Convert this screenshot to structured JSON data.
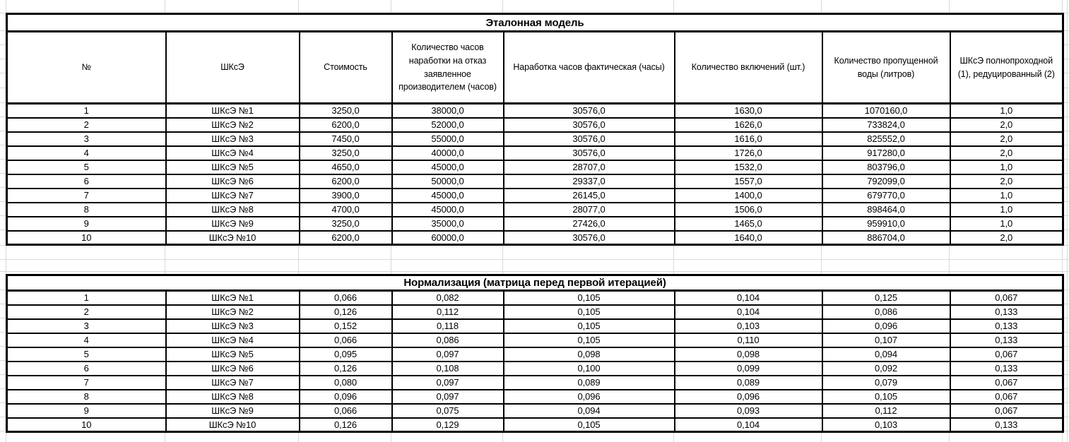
{
  "table1": {
    "title": "Эталонная модель",
    "headers": [
      "№",
      "ШКсЭ",
      "Стоимость",
      "Количество часов наработки на отказ заявленное производителем (часов)",
      "Наработка часов фактическая (часы)",
      "Количество включений (шт.)",
      "Количество пропущенной воды (литров)",
      "ШКсЭ полнопроходной (1), редуцированный (2)"
    ],
    "rows": [
      [
        "1",
        "ШКсЭ №1",
        "3250,0",
        "38000,0",
        "30576,0",
        "1630,0",
        "1070160,0",
        "1,0"
      ],
      [
        "2",
        "ШКсЭ №2",
        "6200,0",
        "52000,0",
        "30576,0",
        "1626,0",
        "733824,0",
        "2,0"
      ],
      [
        "3",
        "ШКсЭ №3",
        "7450,0",
        "55000,0",
        "30576,0",
        "1616,0",
        "825552,0",
        "2,0"
      ],
      [
        "4",
        "ШКсЭ №4",
        "3250,0",
        "40000,0",
        "30576,0",
        "1726,0",
        "917280,0",
        "2,0"
      ],
      [
        "5",
        "ШКсЭ №5",
        "4650,0",
        "45000,0",
        "28707,0",
        "1532,0",
        "803796,0",
        "1,0"
      ],
      [
        "6",
        "ШКсЭ №6",
        "6200,0",
        "50000,0",
        "29337,0",
        "1557,0",
        "792099,0",
        "2,0"
      ],
      [
        "7",
        "ШКсЭ №7",
        "3900,0",
        "45000,0",
        "26145,0",
        "1400,0",
        "679770,0",
        "1,0"
      ],
      [
        "8",
        "ШКсЭ №8",
        "4700,0",
        "45000,0",
        "28077,0",
        "1506,0",
        "898464,0",
        "1,0"
      ],
      [
        "9",
        "ШКсЭ №9",
        "3250,0",
        "35000,0",
        "27426,0",
        "1465,0",
        "959910,0",
        "1,0"
      ],
      [
        "10",
        "ШКсЭ №10",
        "6200,0",
        "60000,0",
        "30576,0",
        "1640,0",
        "886704,0",
        "2,0"
      ]
    ]
  },
  "table2": {
    "title": "Нормализация (матрица перед первой итерацией)",
    "rows": [
      [
        "1",
        "ШКсЭ №1",
        "0,066",
        "0,082",
        "0,105",
        "0,104",
        "0,125",
        "0,067"
      ],
      [
        "2",
        "ШКсЭ №2",
        "0,126",
        "0,112",
        "0,105",
        "0,104",
        "0,086",
        "0,133"
      ],
      [
        "3",
        "ШКсЭ №3",
        "0,152",
        "0,118",
        "0,105",
        "0,103",
        "0,096",
        "0,133"
      ],
      [
        "4",
        "ШКсЭ №4",
        "0,066",
        "0,086",
        "0,105",
        "0,110",
        "0,107",
        "0,133"
      ],
      [
        "5",
        "ШКсЭ №5",
        "0,095",
        "0,097",
        "0,098",
        "0,098",
        "0,094",
        "0,067"
      ],
      [
        "6",
        "ШКсЭ №6",
        "0,126",
        "0,108",
        "0,100",
        "0,099",
        "0,092",
        "0,133"
      ],
      [
        "7",
        "ШКсЭ №7",
        "0,080",
        "0,097",
        "0,089",
        "0,089",
        "0,079",
        "0,067"
      ],
      [
        "8",
        "ШКсЭ №8",
        "0,096",
        "0,097",
        "0,096",
        "0,096",
        "0,105",
        "0,067"
      ],
      [
        "9",
        "ШКсЭ №9",
        "0,066",
        "0,075",
        "0,094",
        "0,093",
        "0,112",
        "0,067"
      ],
      [
        "10",
        "ШКсЭ №10",
        "0,126",
        "0,129",
        "0,105",
        "0,104",
        "0,103",
        "0,133"
      ]
    ]
  },
  "colors": {
    "table_border": "#000000",
    "gridline": "#d9d9d9",
    "text": "#000000",
    "background": "#ffffff"
  }
}
